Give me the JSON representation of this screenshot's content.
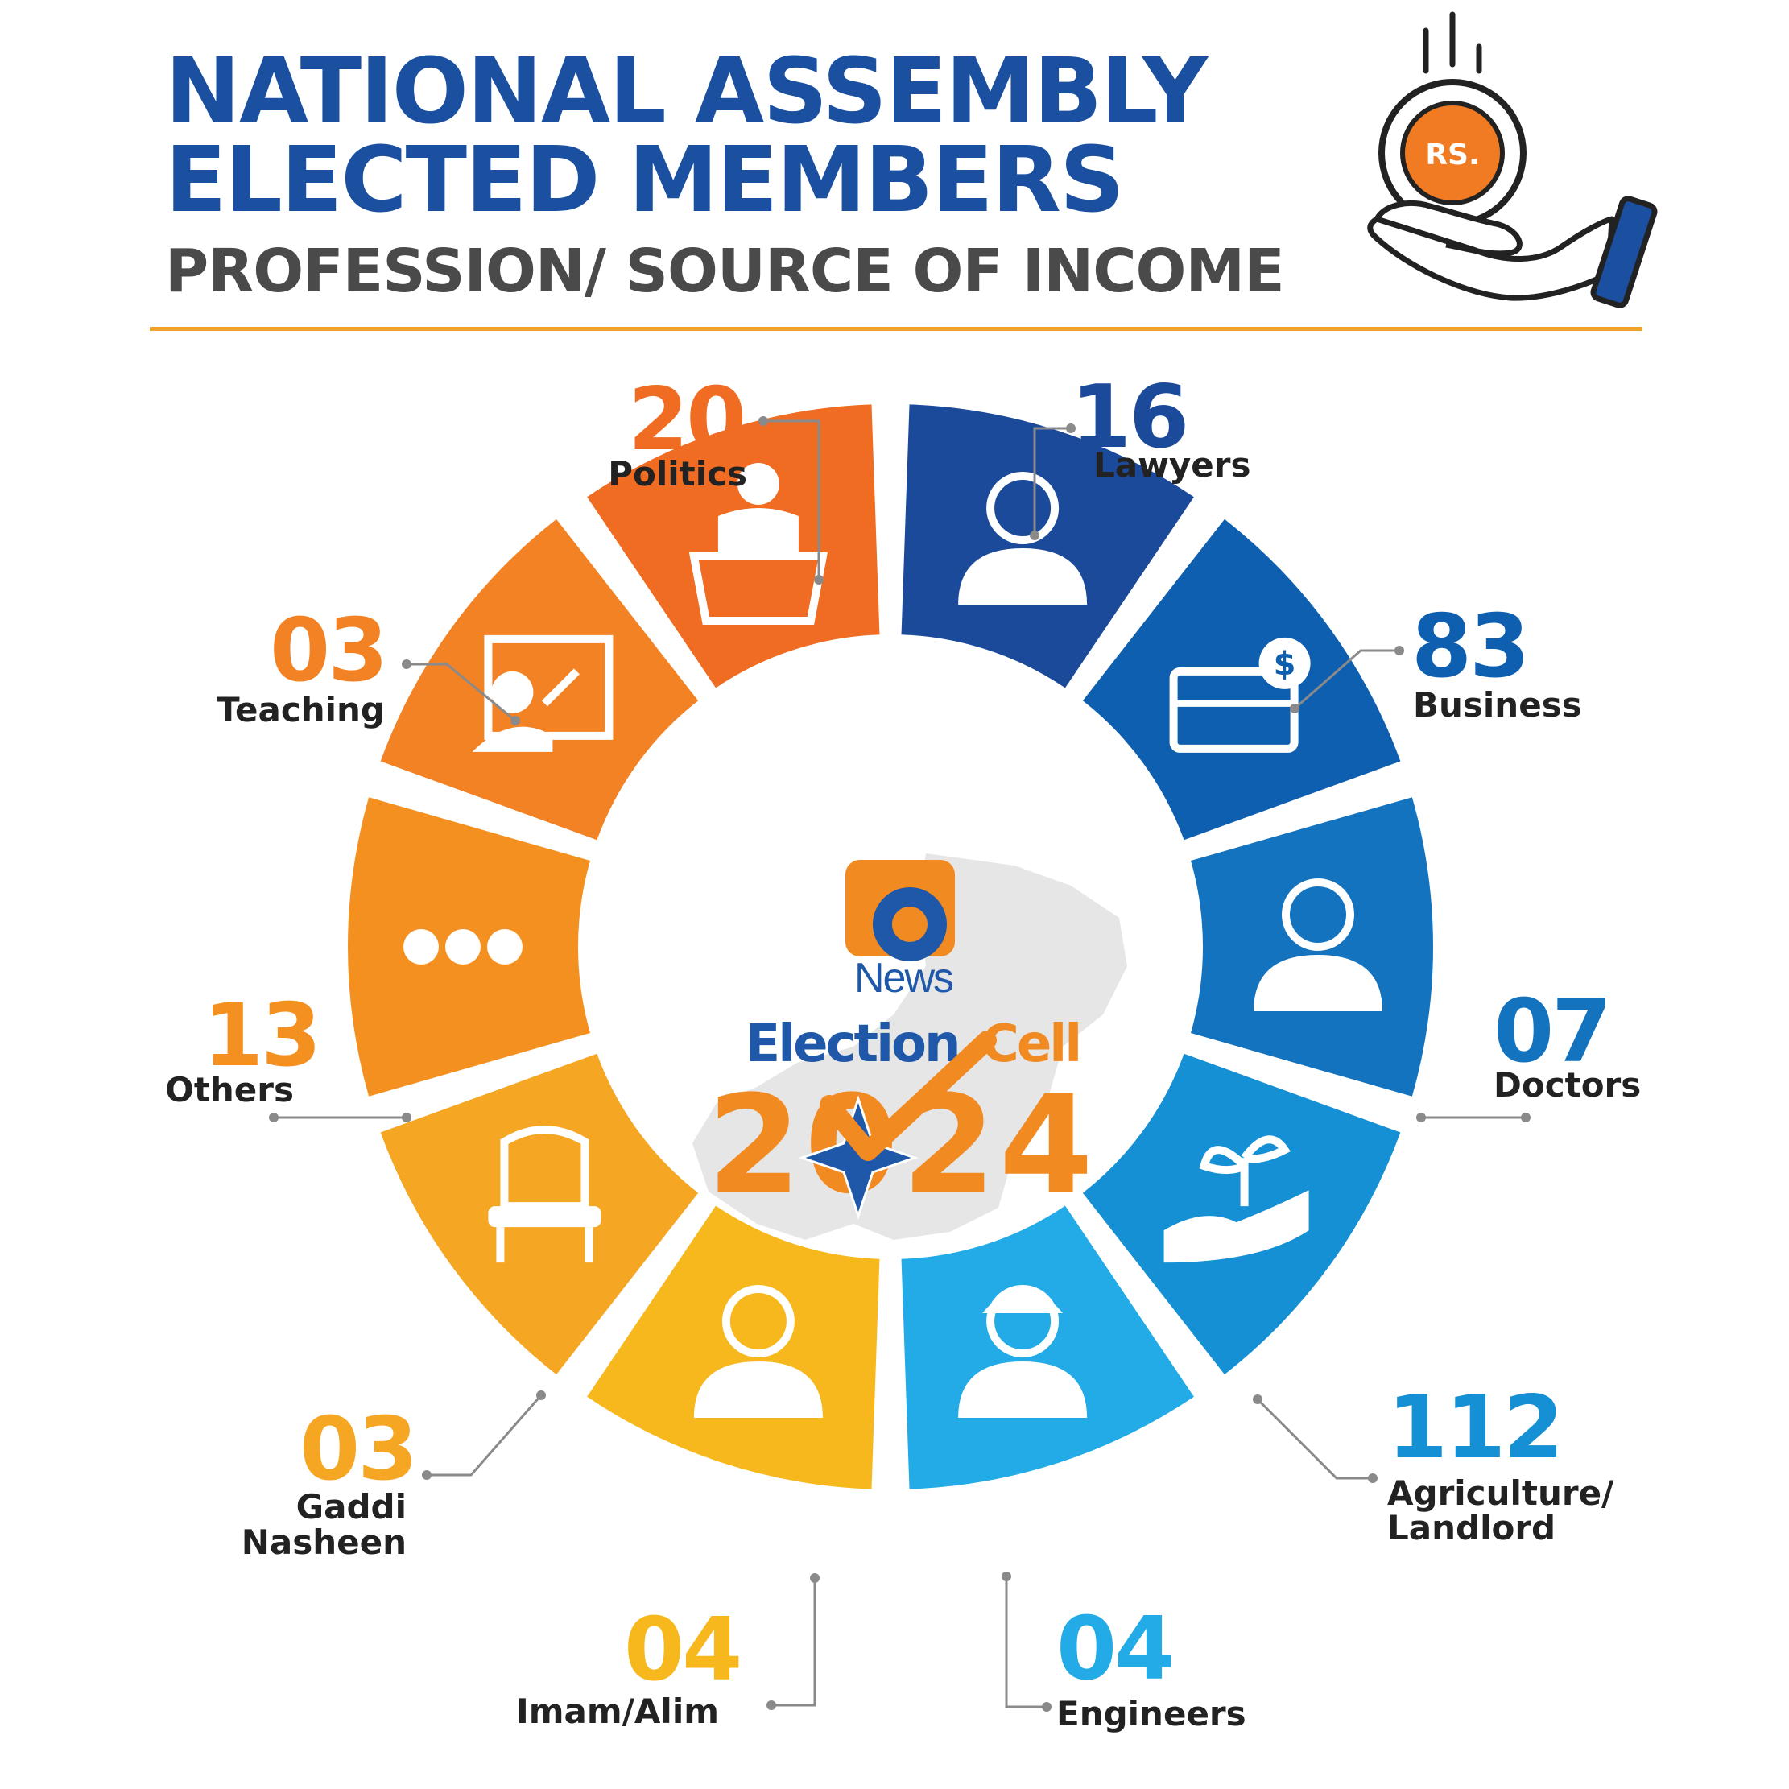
{
  "header": {
    "title_line_1": "NATIONAL ASSEMBLY",
    "title_line_2": "ELECTED MEMBERS",
    "subtitle": "PROFESSION/ SOURCE OF INCOME",
    "icon_badge": "RS."
  },
  "logo": {
    "brand": "News",
    "wordmark_1": "Election",
    "wordmark_2": "Cell",
    "year": "2024"
  },
  "chart_data": {
    "type": "pie",
    "categories": [
      "Lawyers",
      "Business",
      "Doctors",
      "Agriculture/ Landlord",
      "Engineers",
      "Imam/Alim",
      "Gaddi Nasheen",
      "Others",
      "Teaching",
      "Politics"
    ],
    "values": [
      16,
      83,
      7,
      112,
      4,
      4,
      3,
      13,
      3,
      20
    ],
    "value_labels": [
      "16",
      "83",
      "07",
      "112",
      "04",
      "04",
      "03",
      "13",
      "03",
      "20"
    ],
    "colors": [
      "#1c4a9b",
      "#0e5fb0",
      "#1473bf",
      "#1690d4",
      "#22abe6",
      "#f7b81d",
      "#f5a623",
      "#f4901f",
      "#f28223",
      "#ef6c22"
    ],
    "icons": [
      "lawyer-icon",
      "briefcase-dollar-icon",
      "doctor-icon",
      "hand-sprout-icon",
      "engineer-helmet-icon",
      "imam-icon",
      "armchair-icon",
      "ellipsis-icon",
      "teacher-board-icon",
      "podium-speaker-icon"
    ],
    "grid": false,
    "legend": "none"
  }
}
